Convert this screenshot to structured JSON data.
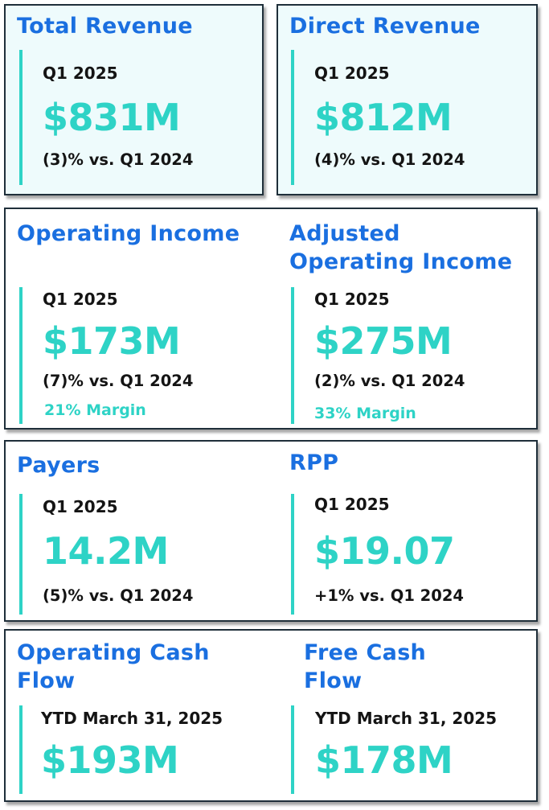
{
  "cards": {
    "total_revenue": {
      "title": "Total Revenue",
      "period": "Q1 2025",
      "value": "$831M",
      "change": "(3)% vs. Q1 2024"
    },
    "direct_revenue": {
      "title": "Direct Revenue",
      "period": "Q1 2025",
      "value": "$812M",
      "change": "(4)% vs. Q1 2024"
    },
    "operating_income": {
      "title": "Operating Income",
      "period": "Q1 2025",
      "value": "$173M",
      "change": "(7)% vs. Q1 2024",
      "margin": "21% Margin"
    },
    "adjusted_operating_income": {
      "title_line1": "Adjusted",
      "title_line2": "Operating Income",
      "period": "Q1 2025",
      "value": "$275M",
      "change": "(2)% vs. Q1 2024",
      "margin": "33% Margin"
    },
    "payers": {
      "title": "Payers",
      "period": "Q1 2025",
      "value": "14.2M",
      "change": "(5)% vs. Q1 2024"
    },
    "rpp": {
      "title": "RPP",
      "period": "Q1 2025",
      "value": "$19.07",
      "change": "+1% vs. Q1 2024"
    },
    "operating_cash_flow": {
      "title_line1": "Operating Cash",
      "title_line2": "Flow",
      "period": "YTD March 31, 2025",
      "value": "$193M"
    },
    "free_cash_flow": {
      "title_line1": "Free Cash",
      "title_line2": "Flow",
      "period": "YTD March 31, 2025",
      "value": "$178M"
    }
  },
  "colors": {
    "title": "#1a6fe0",
    "accent": "#2ed3c6",
    "text": "#141414",
    "border": "#1f2f3a",
    "tint": "#eefbfc"
  }
}
